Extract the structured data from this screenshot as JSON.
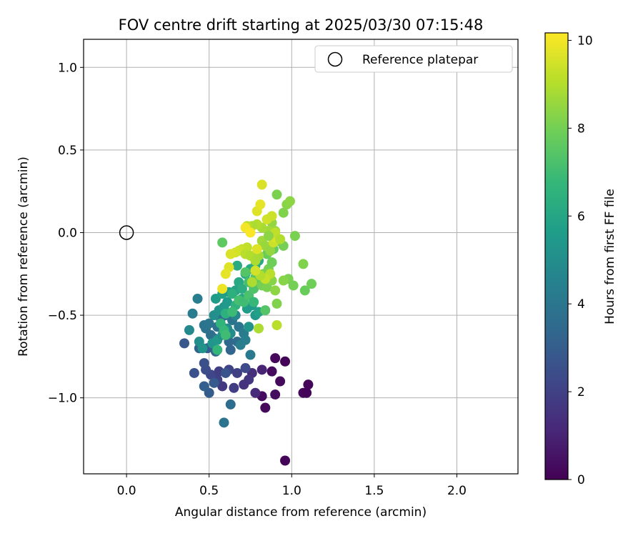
{
  "chart_data": {
    "type": "scatter",
    "title": "FOV centre drift starting at 2025/03/30 07:15:48",
    "xlabel": "Angular distance from reference (arcmin)",
    "ylabel": "Rotation from reference (arcmin)",
    "xlim": [
      -0.26,
      2.37
    ],
    "ylim": [
      -1.46,
      1.17
    ],
    "xticks": [
      0.0,
      0.5,
      1.0,
      1.5,
      2.0
    ],
    "xtick_labels": [
      "0.0",
      "0.5",
      "1.0",
      "1.5",
      "2.0"
    ],
    "yticks": [
      1.0,
      0.5,
      0.0,
      -0.5,
      -1.0
    ],
    "ytick_labels": [
      "1.0",
      "0.5",
      "0.0",
      "−0.5",
      "−1.0"
    ],
    "grid": true,
    "legend": {
      "position": "top-right",
      "entries": [
        "Reference platepar"
      ]
    },
    "reference_point": {
      "x": 0.0,
      "y": 0.0
    },
    "colorbar": {
      "label": "Hours from first FF file",
      "range": [
        0,
        10.17
      ],
      "ticks": [
        0,
        2,
        4,
        6,
        8,
        10
      ],
      "tick_labels": [
        "0",
        "2",
        "4",
        "6",
        "8",
        "10"
      ],
      "colormap": "viridis"
    },
    "colormap_stops": [
      "#440154",
      "#482878",
      "#3e4989",
      "#31688e",
      "#26828e",
      "#1f9e89",
      "#35b779",
      "#6ece58",
      "#b5de2b",
      "#fde725"
    ],
    "series": [
      {
        "points": [
          [
            0.96,
            -1.38,
            0.1
          ],
          [
            0.84,
            -1.06,
            0.2
          ],
          [
            1.07,
            -0.97,
            0.2
          ],
          [
            1.09,
            -0.97,
            0.1
          ],
          [
            1.1,
            -0.92,
            0.15
          ],
          [
            0.82,
            -0.99,
            0.3
          ],
          [
            0.9,
            -0.98,
            0.35
          ],
          [
            0.93,
            -0.9,
            0.25
          ],
          [
            0.96,
            -0.78,
            0.1
          ],
          [
            0.9,
            -0.76,
            0.2
          ],
          [
            0.88,
            -0.84,
            0.3
          ],
          [
            0.78,
            -0.97,
            1.2
          ],
          [
            0.82,
            -0.83,
            1.0
          ],
          [
            0.76,
            -0.85,
            1.4
          ],
          [
            0.74,
            -0.89,
            1.6
          ],
          [
            0.71,
            -0.92,
            1.5
          ],
          [
            0.65,
            -0.94,
            1.8
          ],
          [
            0.58,
            -0.93,
            1.7
          ],
          [
            0.55,
            -0.89,
            2.0
          ],
          [
            0.51,
            -0.86,
            2.2
          ],
          [
            0.56,
            -0.84,
            1.9
          ],
          [
            0.62,
            -0.83,
            2.1
          ],
          [
            0.67,
            -0.85,
            2.0
          ],
          [
            0.72,
            -0.82,
            2.3
          ],
          [
            0.48,
            -0.83,
            2.4
          ],
          [
            0.41,
            -0.85,
            2.6
          ],
          [
            0.47,
            -0.79,
            2.5
          ],
          [
            0.5,
            -0.97,
            3.0
          ],
          [
            0.47,
            -0.93,
            3.1
          ],
          [
            0.53,
            -0.91,
            2.9
          ],
          [
            0.6,
            -0.85,
            2.7
          ],
          [
            0.35,
            -0.67,
            2.8
          ],
          [
            0.49,
            -0.7,
            2.9
          ],
          [
            0.44,
            -0.7,
            3.2
          ],
          [
            0.54,
            -0.72,
            3.3
          ],
          [
            0.63,
            -1.04,
            3.6
          ],
          [
            0.59,
            -1.15,
            3.9
          ],
          [
            0.62,
            -0.66,
            3.4
          ],
          [
            0.67,
            -0.66,
            3.5
          ],
          [
            0.63,
            -0.71,
            3.3
          ],
          [
            0.53,
            -0.64,
            3.6
          ],
          [
            0.51,
            -0.62,
            3.7
          ],
          [
            0.48,
            -0.58,
            3.8
          ],
          [
            0.47,
            -0.56,
            3.9
          ],
          [
            0.5,
            -0.55,
            4.0
          ],
          [
            0.55,
            -0.57,
            3.8
          ],
          [
            0.57,
            -0.52,
            3.7
          ],
          [
            0.6,
            -0.5,
            3.6
          ],
          [
            0.64,
            -0.53,
            3.9
          ],
          [
            0.68,
            -0.57,
            4.0
          ],
          [
            0.71,
            -0.61,
            4.2
          ],
          [
            0.75,
            -0.74,
            4.1
          ],
          [
            0.69,
            -0.68,
            4.3
          ],
          [
            0.72,
            -0.65,
            4.4
          ],
          [
            0.4,
            -0.49,
            4.2
          ],
          [
            0.43,
            -0.4,
            4.3
          ],
          [
            0.38,
            -0.59,
            4.8
          ],
          [
            0.44,
            -0.66,
            5.0
          ],
          [
            0.46,
            -0.7,
            5.2
          ],
          [
            0.52,
            -0.67,
            5.3
          ],
          [
            0.55,
            -0.65,
            5.4
          ],
          [
            0.58,
            -0.62,
            5.1
          ],
          [
            0.61,
            -0.58,
            5.0
          ],
          [
            0.63,
            -0.61,
            4.9
          ],
          [
            0.66,
            -0.5,
            4.7
          ],
          [
            0.53,
            -0.5,
            5.0
          ],
          [
            0.56,
            -0.47,
            5.2
          ],
          [
            0.59,
            -0.45,
            5.4
          ],
          [
            0.61,
            -0.42,
            5.5
          ],
          [
            0.54,
            -0.4,
            5.6
          ],
          [
            0.58,
            -0.37,
            5.8
          ],
          [
            0.62,
            -0.36,
            5.7
          ],
          [
            0.66,
            -0.35,
            5.9
          ],
          [
            0.73,
            -0.46,
            5.6
          ],
          [
            0.76,
            -0.44,
            5.5
          ],
          [
            0.74,
            -0.57,
            5.2
          ],
          [
            0.78,
            -0.5,
            5.4
          ],
          [
            0.8,
            -0.48,
            5.8
          ],
          [
            0.7,
            -0.4,
            6.0
          ],
          [
            0.68,
            -0.3,
            6.1
          ],
          [
            0.72,
            -0.25,
            6.0
          ],
          [
            0.75,
            -0.22,
            6.2
          ],
          [
            0.78,
            -0.2,
            6.3
          ],
          [
            0.8,
            -0.17,
            6.1
          ],
          [
            0.67,
            -0.2,
            6.2
          ],
          [
            0.7,
            -0.34,
            6.3
          ],
          [
            0.64,
            -0.37,
            6.4
          ],
          [
            0.66,
            -0.44,
            6.5
          ],
          [
            0.6,
            -0.49,
            6.4
          ],
          [
            0.57,
            -0.55,
            6.6
          ],
          [
            0.59,
            -0.59,
            6.8
          ],
          [
            0.55,
            -0.71,
            6.7
          ],
          [
            0.6,
            -0.62,
            7.0
          ],
          [
            0.64,
            -0.48,
            6.9
          ],
          [
            0.68,
            -0.41,
            7.1
          ],
          [
            0.71,
            -0.42,
            7.0
          ],
          [
            0.74,
            -0.38,
            7.2
          ],
          [
            0.77,
            -0.34,
            7.3
          ],
          [
            0.74,
            -0.3,
            7.1
          ],
          [
            0.72,
            -0.24,
            7.4
          ],
          [
            0.78,
            -0.27,
            7.5
          ],
          [
            0.81,
            -0.3,
            7.6
          ],
          [
            0.84,
            -0.47,
            7.4
          ],
          [
            0.8,
            -0.58,
            8.9
          ],
          [
            0.91,
            -0.43,
            8.2
          ],
          [
            0.82,
            -0.32,
            8.0
          ],
          [
            0.85,
            -0.33,
            8.1
          ],
          [
            0.88,
            -0.29,
            8.3
          ],
          [
            0.9,
            -0.35,
            8.4
          ],
          [
            0.83,
            -0.25,
            8.2
          ],
          [
            0.86,
            -0.22,
            8.0
          ],
          [
            0.88,
            -0.18,
            7.9
          ],
          [
            0.85,
            -0.13,
            7.8
          ],
          [
            0.89,
            -0.1,
            7.7
          ],
          [
            0.92,
            -0.05,
            7.9
          ],
          [
            0.95,
            -0.08,
            8.0
          ],
          [
            0.98,
            -0.28,
            8.1
          ],
          [
            1.01,
            -0.32,
            8.0
          ],
          [
            1.08,
            -0.35,
            7.8
          ],
          [
            1.12,
            -0.31,
            7.9
          ],
          [
            1.07,
            -0.19,
            8.2
          ],
          [
            1.02,
            -0.02,
            8.1
          ],
          [
            0.95,
            0.12,
            8.2
          ],
          [
            0.97,
            0.17,
            8.3
          ],
          [
            0.99,
            0.19,
            8.4
          ],
          [
            0.91,
            0.23,
            8.1
          ],
          [
            0.88,
            0.06,
            8.5
          ],
          [
            0.9,
            0.01,
            8.6
          ],
          [
            0.86,
            0.01,
            8.7
          ],
          [
            0.82,
            0.03,
            8.8
          ],
          [
            0.79,
            0.05,
            9.0
          ],
          [
            0.76,
            0.04,
            8.9
          ],
          [
            0.73,
            0.04,
            9.1
          ],
          [
            0.73,
            -0.09,
            9.2
          ],
          [
            0.7,
            -0.1,
            9.3
          ],
          [
            0.68,
            -0.11,
            9.4
          ],
          [
            0.66,
            -0.12,
            9.5
          ],
          [
            0.63,
            -0.13,
            9.6
          ],
          [
            0.62,
            -0.21,
            9.7
          ],
          [
            0.6,
            -0.25,
            9.8
          ],
          [
            0.58,
            -0.34,
            9.9
          ],
          [
            0.72,
            -0.13,
            9.1
          ],
          [
            0.75,
            -0.14,
            9.0
          ],
          [
            0.78,
            -0.17,
            8.9
          ],
          [
            0.8,
            -0.14,
            8.8
          ],
          [
            0.82,
            -0.05,
            8.7
          ],
          [
            0.84,
            -0.08,
            8.6
          ],
          [
            0.87,
            -0.11,
            8.5
          ],
          [
            0.89,
            -0.06,
            9.4
          ],
          [
            0.9,
            -0.03,
            9.6
          ],
          [
            0.87,
            -0.25,
            9.1
          ],
          [
            0.84,
            -0.28,
            9.3
          ],
          [
            0.81,
            -0.26,
            9.0
          ],
          [
            0.78,
            -0.23,
            9.5
          ],
          [
            0.76,
            -0.3,
            8.9
          ],
          [
            0.72,
            0.03,
            10.0
          ],
          [
            0.75,
            0.0,
            10.1
          ],
          [
            0.79,
            0.13,
            9.7
          ],
          [
            0.81,
            0.17,
            9.8
          ],
          [
            0.82,
            0.29,
            9.6
          ],
          [
            0.85,
            0.08,
            9.5
          ],
          [
            0.88,
            0.1,
            9.4
          ],
          [
            0.9,
            0.0,
            9.2
          ],
          [
            0.93,
            -0.04,
            9.0
          ],
          [
            0.91,
            -0.56,
            9.1
          ],
          [
            0.58,
            -0.06,
            7.6
          ],
          [
            0.79,
            -0.1,
            9.7
          ],
          [
            0.86,
            -0.02,
            8.4
          ],
          [
            0.95,
            -0.29,
            8.3
          ],
          [
            0.77,
            -0.42,
            6.8
          ]
        ]
      }
    ]
  }
}
